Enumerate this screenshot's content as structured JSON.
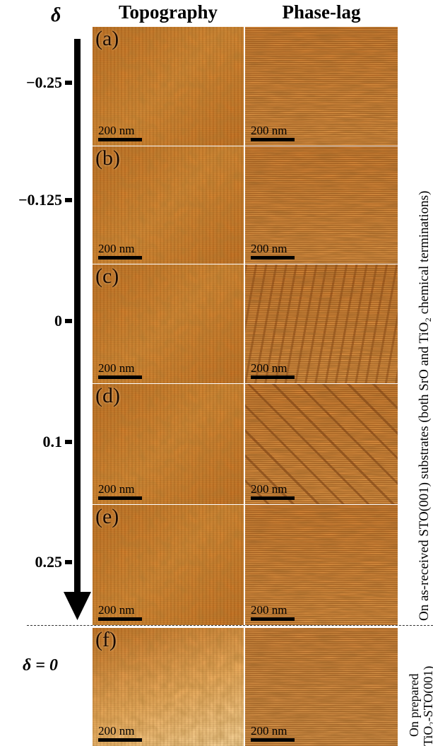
{
  "headers": {
    "delta": "δ",
    "topography": "Topography",
    "phase_lag": "Phase-lag"
  },
  "ticks": [
    "−0.25",
    "−0.125",
    "0",
    "0.1",
    "0.25"
  ],
  "bottom_label": "δ = 0",
  "panels": [
    {
      "label": "(a)",
      "scale": "200 nm"
    },
    {
      "label": "(b)",
      "scale": "200 nm"
    },
    {
      "label": "(c)",
      "scale": "200 nm"
    },
    {
      "label": "(d)",
      "scale": "200 nm"
    },
    {
      "label": "(e)",
      "scale": "200 nm"
    },
    {
      "label": "(f)",
      "scale": "200 nm"
    }
  ],
  "side_labels": {
    "as_received": "On as-received STO(001) substrates (both SrO and TiO₂ chemical terminations)",
    "prepared_line1": "On prepared",
    "prepared_line2": "TiO₂-STO(001)"
  },
  "colors": {
    "afm_dark": "#7a3a08",
    "afm_mid": "#c06a1c",
    "afm_light": "#f0b060",
    "afm_highlight": "#ffe0a8"
  }
}
